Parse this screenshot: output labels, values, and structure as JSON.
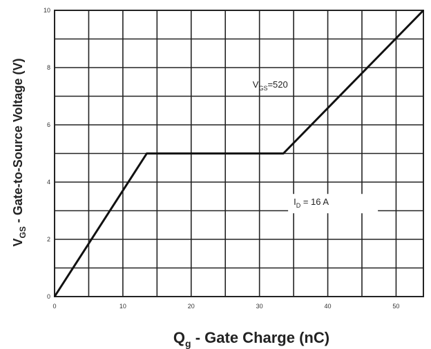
{
  "chart_data": {
    "type": "line",
    "xlabel": {
      "main": "Q",
      "sub": "g",
      "rest": " - Gate Charge (nC)"
    },
    "ylabel": {
      "main": "V",
      "sub": "GS",
      "rest": " - Gate-to-Source Voltage (V)"
    },
    "xlim": [
      0,
      54
    ],
    "ylim": [
      0,
      10
    ],
    "xticks": [
      "0",
      "10",
      "20",
      "30",
      "40",
      "50"
    ],
    "xtick_values": [
      0,
      10,
      20,
      30,
      40,
      50
    ],
    "yticks": [
      "0",
      "2",
      "4",
      "6",
      "8",
      "10"
    ],
    "ytick_values": [
      0,
      2,
      4,
      6,
      8,
      10
    ],
    "grid": true,
    "series": [
      {
        "x": [
          0,
          13.5,
          33.5,
          54
        ],
        "y": [
          0,
          5,
          5,
          10
        ],
        "color": "#111111"
      }
    ],
    "annotations": [
      {
        "main": "V",
        "sub": "GS",
        "rest": "=520",
        "x": 29,
        "y": 7.3
      },
      {
        "main": "I",
        "sub": "D",
        "rest": " = 16 A",
        "x": 35,
        "y": 3.2
      }
    ]
  }
}
